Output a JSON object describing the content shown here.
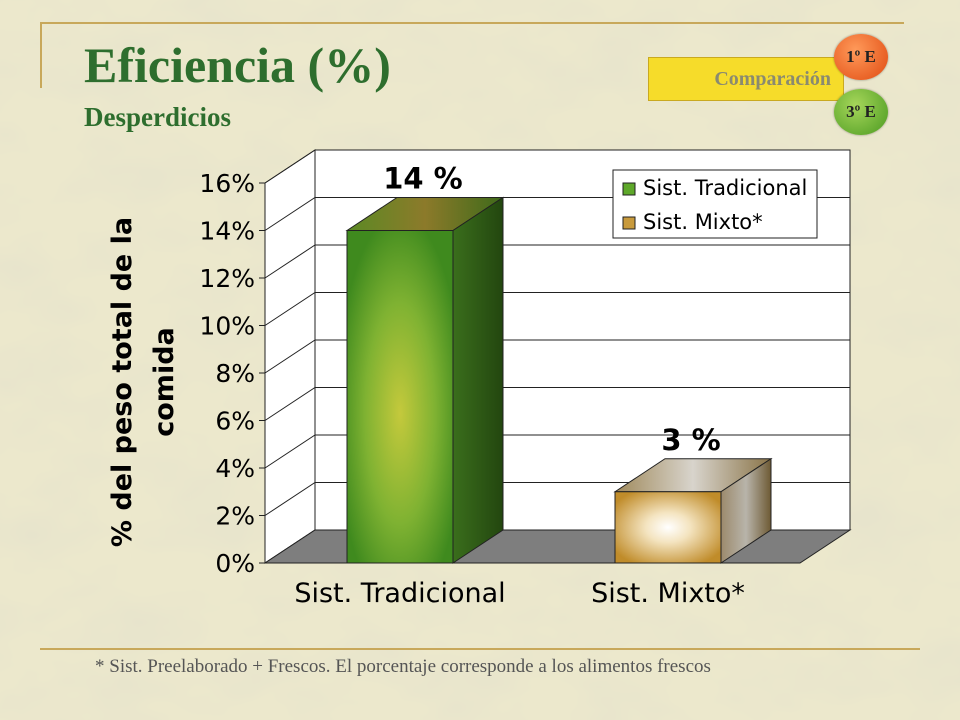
{
  "header": {
    "title": "Eficiencia (%)",
    "subtitle": "Desperdicios",
    "compare_label": "Comparación",
    "badge_top": "1º E",
    "badge_bottom": "3º E"
  },
  "chart_data": {
    "type": "bar",
    "categories": [
      "Sist. Tradicional",
      "Sist. Mixto*"
    ],
    "values": [
      14,
      3
    ],
    "value_labels": [
      "14 %",
      "3 %"
    ],
    "ylabel": "% del peso total de la comida",
    "ylim": [
      0,
      16
    ],
    "ytick_labels": [
      "0%",
      "2%",
      "4%",
      "6%",
      "8%",
      "10%",
      "12%",
      "14%",
      "16%"
    ],
    "legend": [
      "Sist. Tradicional",
      "Sist. Mixto*"
    ],
    "legend_position": "top-right",
    "grid": true,
    "style": "3d",
    "colors": {
      "tradicional_front": "#5ea82a",
      "tradicional_side": "#2f5e16",
      "mixto_front": "#c89a3c",
      "mixto_side": "#7a5a24",
      "floor": "#7e7e7e"
    }
  },
  "footnote": "* Sist. Preelaborado + Frescos. El porcentaje corresponde a los alimentos frescos"
}
